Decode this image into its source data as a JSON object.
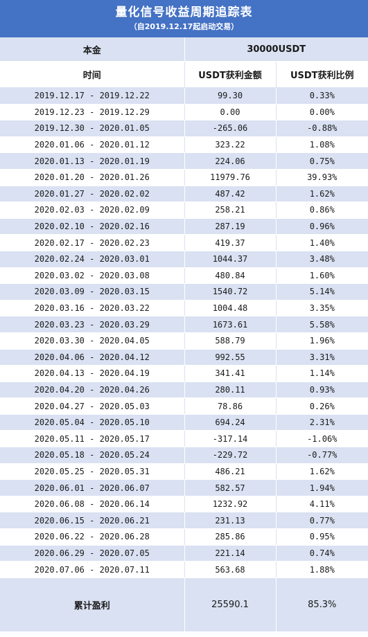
{
  "header": {
    "title": "量化信号收益周期追踪表",
    "subtitle": "（自2019.12.17起启动交易）"
  },
  "principal": {
    "label": "本金",
    "value": "30000USDT"
  },
  "columns": {
    "period": "时间",
    "amount": "USDT获利金额",
    "ratio": "USDT获利比例"
  },
  "rows": [
    {
      "period": "2019.12.17 - 2019.12.22",
      "amount": "99.30",
      "ratio": "0.33%"
    },
    {
      "period": "2019.12.23 - 2019.12.29",
      "amount": "0.00",
      "ratio": "0.00%"
    },
    {
      "period": "2019.12.30 - 2020.01.05",
      "amount": "-265.06",
      "ratio": "-0.88%"
    },
    {
      "period": "2020.01.06 - 2020.01.12",
      "amount": "323.22",
      "ratio": "1.08%"
    },
    {
      "period": "2020.01.13 - 2020.01.19",
      "amount": "224.06",
      "ratio": "0.75%"
    },
    {
      "period": "2020.01.20 - 2020.01.26",
      "amount": "11979.76",
      "ratio": "39.93%"
    },
    {
      "period": "2020.01.27 - 2020.02.02",
      "amount": "487.42",
      "ratio": "1.62%"
    },
    {
      "period": "2020.02.03 - 2020.02.09",
      "amount": "258.21",
      "ratio": "0.86%"
    },
    {
      "period": "2020.02.10 - 2020.02.16",
      "amount": "287.19",
      "ratio": "0.96%"
    },
    {
      "period": "2020.02.17 - 2020.02.23",
      "amount": "419.37",
      "ratio": "1.40%"
    },
    {
      "period": "2020.02.24 - 2020.03.01",
      "amount": "1044.37",
      "ratio": "3.48%"
    },
    {
      "period": "2020.03.02 - 2020.03.08",
      "amount": "480.84",
      "ratio": "1.60%"
    },
    {
      "period": "2020.03.09 - 2020.03.15",
      "amount": "1540.72",
      "ratio": "5.14%"
    },
    {
      "period": "2020.03.16 - 2020.03.22",
      "amount": "1004.48",
      "ratio": "3.35%"
    },
    {
      "period": "2020.03.23 - 2020.03.29",
      "amount": "1673.61",
      "ratio": "5.58%"
    },
    {
      "period": "2020.03.30 - 2020.04.05",
      "amount": "588.79",
      "ratio": "1.96%"
    },
    {
      "period": "2020.04.06 - 2020.04.12",
      "amount": "992.55",
      "ratio": "3.31%"
    },
    {
      "period": "2020.04.13 - 2020.04.19",
      "amount": "341.41",
      "ratio": "1.14%"
    },
    {
      "period": "2020.04.20 - 2020.04.26",
      "amount": "280.11",
      "ratio": "0.93%"
    },
    {
      "period": "2020.04.27 - 2020.05.03",
      "amount": "78.86",
      "ratio": "0.26%"
    },
    {
      "period": "2020.05.04 - 2020.05.10",
      "amount": "694.24",
      "ratio": "2.31%"
    },
    {
      "period": "2020.05.11 - 2020.05.17",
      "amount": "-317.14",
      "ratio": "-1.06%"
    },
    {
      "period": "2020.05.18 - 2020.05.24",
      "amount": "-229.72",
      "ratio": "-0.77%"
    },
    {
      "period": "2020.05.25 - 2020.05.31",
      "amount": "486.21",
      "ratio": "1.62%"
    },
    {
      "period": "2020.06.01 - 2020.06.07",
      "amount": "582.57",
      "ratio": "1.94%"
    },
    {
      "period": "2020.06.08 - 2020.06.14",
      "amount": "1232.92",
      "ratio": "4.11%"
    },
    {
      "period": "2020.06.15 - 2020.06.21",
      "amount": "231.13",
      "ratio": "0.77%"
    },
    {
      "period": "2020.06.22 - 2020.06.28",
      "amount": "285.86",
      "ratio": "0.95%"
    },
    {
      "period": "2020.06.29 - 2020.07.05",
      "amount": "221.14",
      "ratio": "0.74%"
    },
    {
      "period": "2020.07.06 - 2020.07.11",
      "amount": "563.68",
      "ratio": "1.88%"
    }
  ],
  "total": {
    "label": "累计盈利",
    "amount": "25590.1",
    "ratio": "85.3%"
  },
  "colors": {
    "header_bg": "#4472c4",
    "band_bg": "#d9e1f2",
    "text": "#1a1a1a"
  }
}
